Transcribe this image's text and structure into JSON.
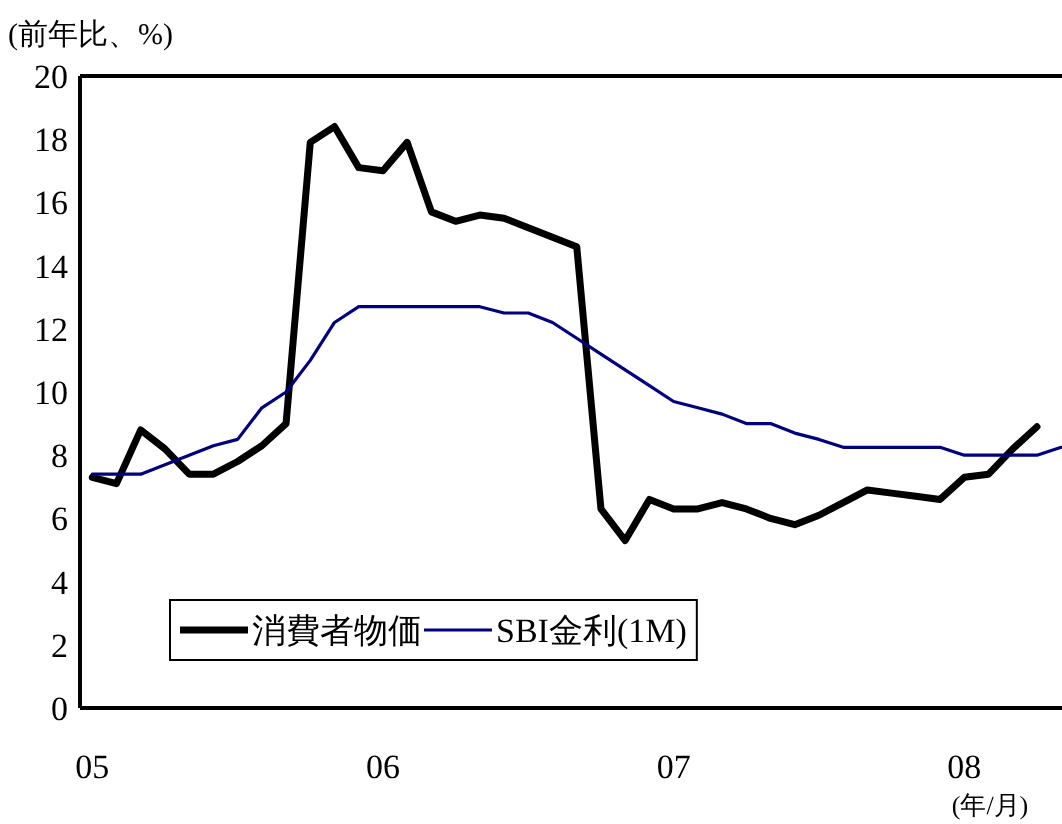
{
  "chart_data": {
    "type": "line",
    "ylabel": "(前年比、%)",
    "xlabel": "(年/月)",
    "x": [
      "2005-01",
      "2005-02",
      "2005-03",
      "2005-04",
      "2005-05",
      "2005-06",
      "2005-07",
      "2005-08",
      "2005-09",
      "2005-10",
      "2005-11",
      "2005-12",
      "2006-01",
      "2006-02",
      "2006-03",
      "2006-04",
      "2006-05",
      "2006-06",
      "2006-07",
      "2006-08",
      "2006-09",
      "2006-10",
      "2006-11",
      "2006-12",
      "2007-01",
      "2007-02",
      "2007-03",
      "2007-04",
      "2007-05",
      "2007-06",
      "2007-07",
      "2007-08",
      "2007-09",
      "2007-10",
      "2007-11",
      "2007-12",
      "2008-01",
      "2008-02",
      "2008-03",
      "2008-04",
      "2008-05"
    ],
    "series": [
      {
        "name": "消費者物価",
        "color": "#000000",
        "values": [
          7.3,
          7.1,
          8.8,
          8.2,
          7.4,
          7.4,
          7.8,
          8.3,
          9.0,
          17.9,
          18.4,
          17.1,
          17.0,
          17.9,
          15.7,
          15.4,
          15.6,
          15.5,
          15.2,
          14.9,
          14.6,
          6.3,
          5.3,
          6.6,
          6.3,
          6.3,
          6.5,
          6.3,
          6.0,
          5.8,
          6.1,
          6.5,
          6.9,
          6.8,
          6.7,
          6.6,
          7.3,
          7.4,
          8.2,
          8.9,
          null
        ]
      },
      {
        "name": "SBI金利(1M)",
        "color": "#000080",
        "values": [
          7.4,
          7.4,
          7.4,
          7.7,
          8.0,
          8.3,
          8.5,
          9.5,
          10.0,
          11.0,
          12.2,
          12.7,
          12.7,
          12.7,
          12.7,
          12.7,
          12.7,
          12.5,
          12.5,
          12.2,
          11.7,
          11.2,
          10.7,
          10.2,
          9.7,
          9.5,
          9.3,
          9.0,
          9.0,
          8.7,
          8.5,
          8.25,
          8.25,
          8.25,
          8.25,
          8.25,
          8.0,
          8.0,
          8.0,
          8.0,
          8.25
        ]
      }
    ],
    "xlim": [
      "2004-12-16",
      "2008-05-02"
    ],
    "xticks": [
      {
        "value": "2005-01",
        "label": "05"
      },
      {
        "value": "2006-01",
        "label": "06"
      },
      {
        "value": "2007-01",
        "label": "07"
      },
      {
        "value": "2008-01",
        "label": "08"
      }
    ],
    "ylim": [
      0,
      20
    ],
    "yticks": [
      0,
      2,
      4,
      6,
      8,
      10,
      12,
      14,
      16,
      18,
      20
    ],
    "legend": "bottom left",
    "grid": false,
    "marker": "none",
    "line_style": "solid"
  }
}
